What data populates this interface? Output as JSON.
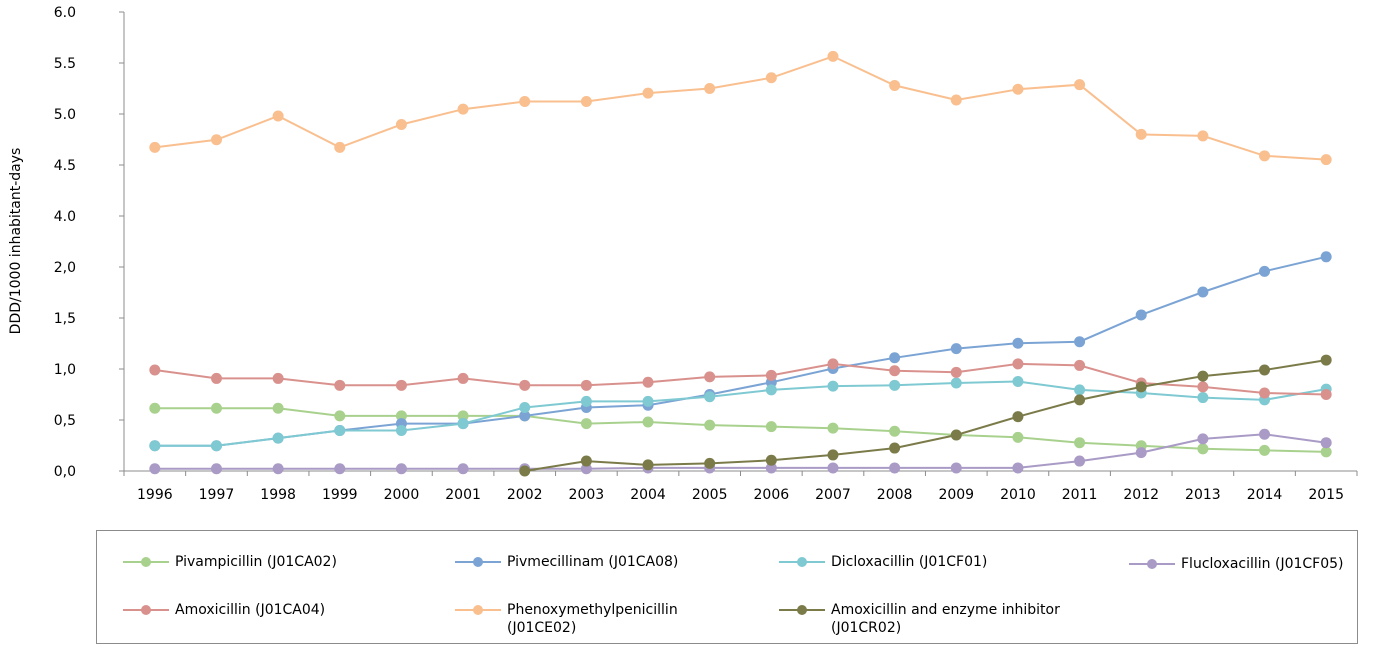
{
  "chart_data": {
    "type": "line",
    "title": "",
    "ylabel": "DDD/1000 inhabitant-days",
    "xlabel": "",
    "categories": [
      "1996",
      "1997",
      "1998",
      "1999",
      "2000",
      "2001",
      "2002",
      "2003",
      "2004",
      "2005",
      "2006",
      "2007",
      "2008",
      "2009",
      "2010",
      "2011",
      "2012",
      "2013",
      "2014",
      "2015"
    ],
    "ytick_labels": [
      "0,0",
      "0,5",
      "1,0",
      "1,5",
      "2,0",
      "4.0",
      "4.5",
      "5.0",
      "5.5",
      "6.0"
    ],
    "ylim": [
      0,
      6.0
    ],
    "grid": false,
    "legend_position": "bottom",
    "series": [
      {
        "name": "Pivampicillin (J01CA02)",
        "color": "#a9d18e",
        "values": [
          0.82,
          0.82,
          0.82,
          0.72,
          0.72,
          0.72,
          0.72,
          0.62,
          0.64,
          0.6,
          0.58,
          0.56,
          0.52,
          0.47,
          0.44,
          0.37,
          0.33,
          0.29,
          0.27,
          0.25
        ]
      },
      {
        "name": "Pivmecillinam (J01CA08)",
        "color": "#7ba4d4",
        "values": [
          0.33,
          0.33,
          0.43,
          0.53,
          0.62,
          0.62,
          0.72,
          0.83,
          0.86,
          1.0,
          1.16,
          1.34,
          1.48,
          1.6,
          1.67,
          1.69,
          2.04,
          2.34,
          2.61,
          2.8
        ]
      },
      {
        "name": "Dicloxacillin (J01CF01)",
        "color": "#7fc9d2",
        "values": [
          0.33,
          0.33,
          0.43,
          0.53,
          0.53,
          0.62,
          0.83,
          0.91,
          0.91,
          0.97,
          1.06,
          1.11,
          1.12,
          1.15,
          1.17,
          1.06,
          1.02,
          0.96,
          0.93,
          1.07
        ]
      },
      {
        "name": "Flucloxacillin (J01CF05)",
        "color": "#a99bc6",
        "values": [
          0.03,
          0.03,
          0.03,
          0.03,
          0.03,
          0.03,
          0.03,
          0.03,
          0.04,
          0.04,
          0.04,
          0.04,
          0.04,
          0.04,
          0.04,
          0.13,
          0.24,
          0.42,
          0.48,
          0.37
        ]
      },
      {
        "name": "Amoxicillin (J01CA04)",
        "color": "#d9918d",
        "values": [
          1.32,
          1.21,
          1.21,
          1.12,
          1.12,
          1.21,
          1.12,
          1.12,
          1.16,
          1.23,
          1.25,
          1.4,
          1.31,
          1.29,
          1.4,
          1.38,
          1.15,
          1.1,
          1.02,
          1.0
        ]
      },
      {
        "name": "Phenoxymethylpenicillin\n(J01CE02)",
        "color": "#f9bf8f",
        "values": [
          4.23,
          4.33,
          4.64,
          4.23,
          4.53,
          4.73,
          4.83,
          4.83,
          4.94,
          5.0,
          5.14,
          5.42,
          5.04,
          4.85,
          4.99,
          5.05,
          4.4,
          4.38,
          4.12,
          4.07
        ]
      },
      {
        "name": "Amoxicillin and  enzyme inhibitor\n(J01CR02)",
        "color": "#7b7b4a",
        "values": [
          null,
          null,
          null,
          null,
          null,
          null,
          0.0,
          0.13,
          0.08,
          0.1,
          0.14,
          0.21,
          0.3,
          0.47,
          0.71,
          0.93,
          1.1,
          1.24,
          1.32,
          1.45
        ]
      }
    ]
  }
}
